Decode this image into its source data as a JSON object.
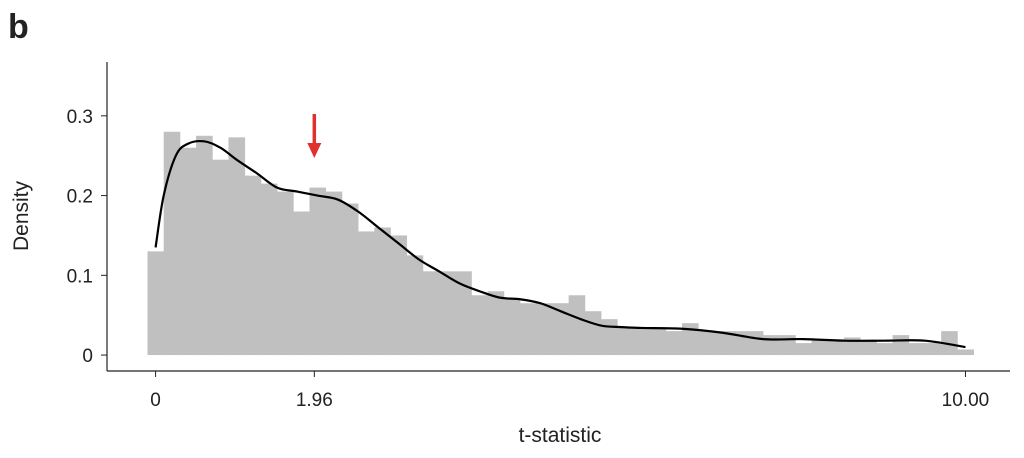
{
  "chart_data": {
    "type": "histogram",
    "panel_label": "b",
    "x_label": "t-statistic",
    "y_label": "Density",
    "bins": [
      -0.1,
      0.1,
      0.3,
      0.5,
      0.7,
      0.9,
      1.1,
      1.3,
      1.5,
      1.7,
      1.9,
      2.1,
      2.3,
      2.5,
      2.7,
      2.9,
      3.1,
      3.3,
      3.5,
      3.7,
      3.9,
      4.1,
      4.3,
      4.5,
      4.7,
      4.9,
      5.1,
      5.3,
      5.5,
      5.7,
      5.9,
      6.1,
      6.3,
      6.5,
      6.7,
      6.9,
      7.1,
      7.3,
      7.5,
      7.7,
      7.9,
      8.1,
      8.3,
      8.5,
      8.7,
      8.9,
      9.1,
      9.3,
      9.5,
      9.7,
      9.9,
      10.1
    ],
    "values": [
      0.13,
      0.28,
      0.26,
      0.275,
      0.245,
      0.273,
      0.225,
      0.215,
      0.205,
      0.18,
      0.21,
      0.205,
      0.19,
      0.155,
      0.16,
      0.15,
      0.125,
      0.105,
      0.105,
      0.105,
      0.075,
      0.08,
      0.07,
      0.065,
      0.065,
      0.065,
      0.075,
      0.055,
      0.045,
      0.035,
      0.035,
      0.035,
      0.03,
      0.04,
      0.03,
      0.03,
      0.03,
      0.03,
      0.025,
      0.025,
      0.015,
      0.02,
      0.02,
      0.022,
      0.018,
      0.015,
      0.025,
      0.015,
      0.015,
      0.03,
      0.007
    ],
    "color": "#c0c0c0",
    "density": {
      "color": "#000000",
      "x": [
        0,
        0.1,
        0.25,
        0.4,
        0.6,
        0.8,
        1.0,
        1.25,
        1.5,
        1.75,
        2.0,
        2.25,
        2.5,
        2.75,
        3.0,
        3.25,
        3.5,
        3.75,
        4.0,
        4.25,
        4.5,
        4.75,
        5.0,
        5.25,
        5.5,
        5.75,
        6.0,
        6.5,
        7.0,
        7.5,
        8.0,
        8.5,
        9.0,
        9.5,
        10.0
      ],
      "values": [
        0.135,
        0.2,
        0.25,
        0.265,
        0.268,
        0.26,
        0.245,
        0.228,
        0.21,
        0.205,
        0.2,
        0.195,
        0.18,
        0.16,
        0.14,
        0.12,
        0.105,
        0.09,
        0.08,
        0.072,
        0.07,
        0.065,
        0.055,
        0.045,
        0.037,
        0.035,
        0.034,
        0.033,
        0.028,
        0.02,
        0.02,
        0.018,
        0.018,
        0.018,
        0.01
      ]
    },
    "arrow_color": "#e03030",
    "xlim": [
      -0.6,
      10.55
    ],
    "ylim": [
      -0.02,
      0.3675
    ],
    "xticks": [
      0,
      1.96,
      {
        "value": 10,
        "label": "10.00"
      }
    ],
    "yticks": [
      0,
      0.1,
      0.2,
      0.3
    ]
  }
}
